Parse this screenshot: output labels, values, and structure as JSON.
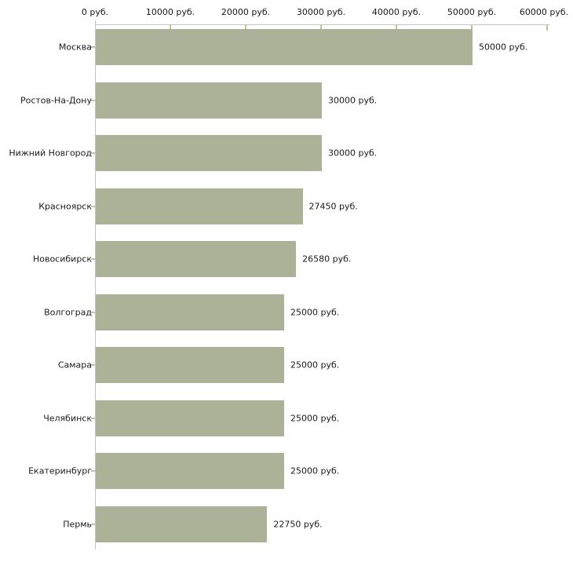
{
  "chart_data": {
    "type": "bar",
    "orientation": "horizontal",
    "title": "",
    "xlabel": "",
    "ylabel": "",
    "xlim": [
      0,
      60000
    ],
    "x_tick_values": [
      0,
      10000,
      20000,
      30000,
      40000,
      50000,
      60000
    ],
    "x_tick_labels": [
      "0 руб.",
      "10000 руб.",
      "20000 руб.",
      "30000 руб.",
      "40000 руб.",
      "50000 руб.",
      "60000 руб."
    ],
    "categories": [
      "Москва",
      "Ростов-На-Дону",
      "Нижний Новгород",
      "Красноярск",
      "Новосибирск",
      "Волгоград",
      "Самара",
      "Челябинск",
      "Екатеринбург",
      "Пермь"
    ],
    "values": [
      50000,
      30000,
      30000,
      27450,
      26580,
      25000,
      25000,
      25000,
      25000,
      22750
    ],
    "value_labels": [
      "50000 руб.",
      "30000 руб.",
      "30000 руб.",
      "27450 руб.",
      "26580 руб.",
      "25000 руб.",
      "25000 руб.",
      "25000 руб.",
      "25000 руб.",
      "22750 руб."
    ],
    "grid": false,
    "legend": false,
    "currency_suffix": "руб.",
    "colors": {
      "bar_fill": "#abb297",
      "axis_line": "#c4c4c4",
      "tick_mark": "#c2c496",
      "text": "#1a1a1a",
      "background": "#ffffff"
    }
  }
}
